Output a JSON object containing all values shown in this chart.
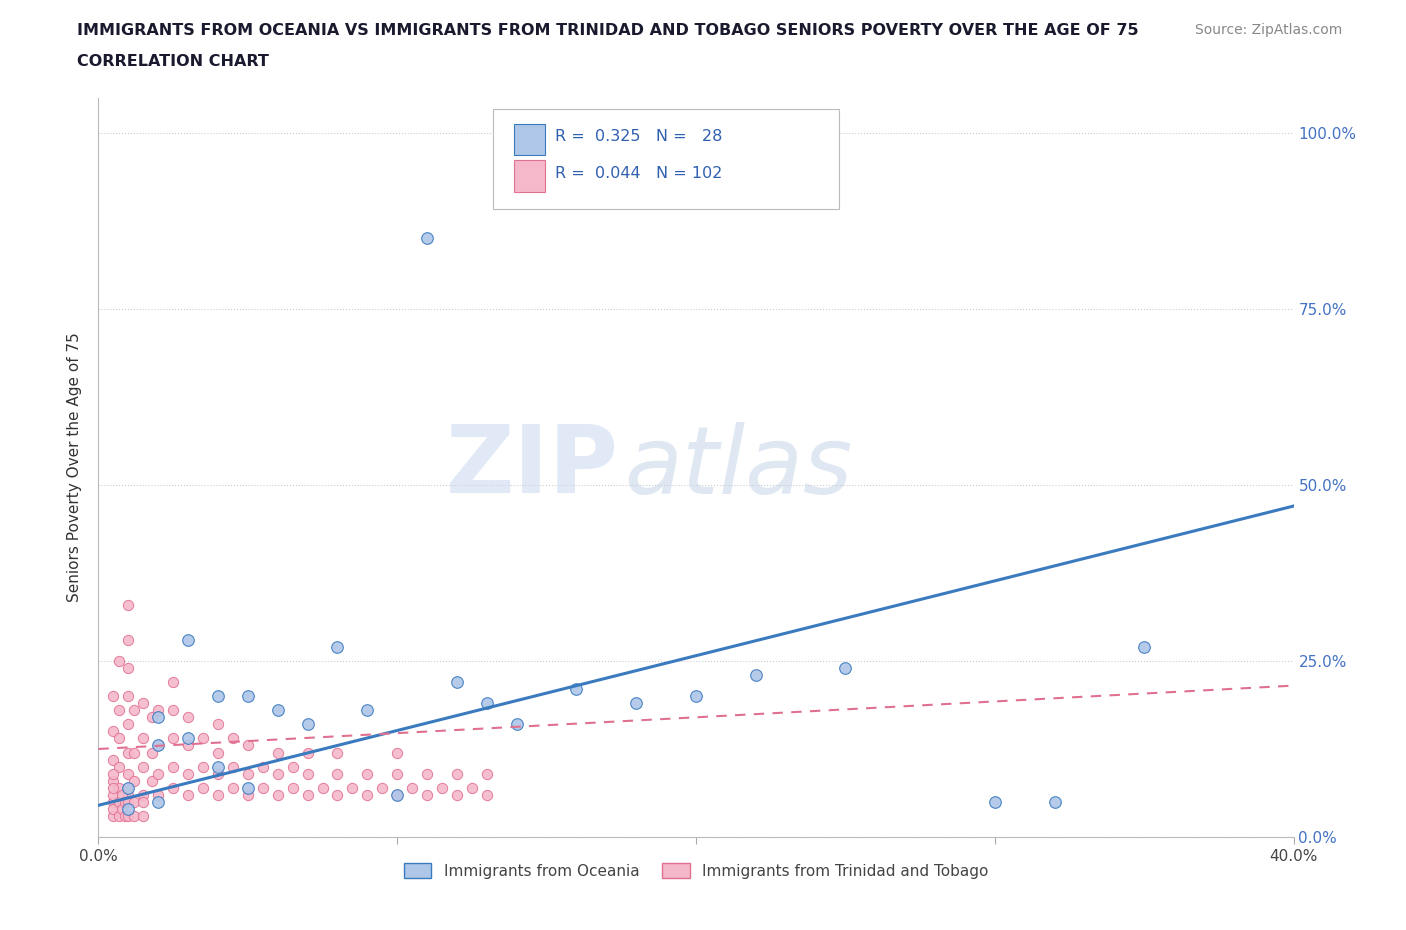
{
  "title_line1": "IMMIGRANTS FROM OCEANIA VS IMMIGRANTS FROM TRINIDAD AND TOBAGO SENIORS POVERTY OVER THE AGE OF 75",
  "title_line2": "CORRELATION CHART",
  "source_text": "Source: ZipAtlas.com",
  "ylabel": "Seniors Poverty Over the Age of 75",
  "xlim": [
    0.0,
    0.4
  ],
  "ylim": [
    0.0,
    1.05
  ],
  "yticks": [
    0.0,
    0.25,
    0.5,
    0.75,
    1.0
  ],
  "ytick_labels": [
    "0.0%",
    "25.0%",
    "50.0%",
    "75.0%",
    "100.0%"
  ],
  "xticks": [
    0.0,
    0.1,
    0.2,
    0.3,
    0.4
  ],
  "xtick_labels": [
    "0.0%",
    "",
    "",
    "",
    "40.0%"
  ],
  "series1_color": "#aec6e8",
  "series2_color": "#f5b8cb",
  "line1_color": "#3a7abf",
  "line2_color": "#e07090",
  "background_color": "#ffffff",
  "oceania_x": [
    0.01,
    0.01,
    0.02,
    0.02,
    0.02,
    0.03,
    0.03,
    0.04,
    0.04,
    0.05,
    0.05,
    0.06,
    0.07,
    0.08,
    0.09,
    0.1,
    0.11,
    0.12,
    0.13,
    0.14,
    0.16,
    0.18,
    0.2,
    0.22,
    0.25,
    0.3,
    0.32,
    0.35
  ],
  "oceania_y": [
    0.04,
    0.07,
    0.13,
    0.17,
    0.05,
    0.28,
    0.14,
    0.2,
    0.1,
    0.2,
    0.07,
    0.18,
    0.16,
    0.27,
    0.18,
    0.06,
    0.85,
    0.22,
    0.19,
    0.16,
    0.21,
    0.19,
    0.2,
    0.23,
    0.24,
    0.05,
    0.05,
    0.27
  ],
  "tt_x": [
    0.005,
    0.005,
    0.005,
    0.005,
    0.005,
    0.007,
    0.007,
    0.007,
    0.007,
    0.007,
    0.01,
    0.01,
    0.01,
    0.01,
    0.01,
    0.01,
    0.01,
    0.01,
    0.012,
    0.012,
    0.012,
    0.015,
    0.015,
    0.015,
    0.015,
    0.018,
    0.018,
    0.018,
    0.02,
    0.02,
    0.02,
    0.02,
    0.025,
    0.025,
    0.025,
    0.025,
    0.025,
    0.03,
    0.03,
    0.03,
    0.03,
    0.035,
    0.035,
    0.035,
    0.04,
    0.04,
    0.04,
    0.04,
    0.045,
    0.045,
    0.045,
    0.05,
    0.05,
    0.05,
    0.055,
    0.055,
    0.06,
    0.06,
    0.06,
    0.065,
    0.065,
    0.07,
    0.07,
    0.07,
    0.075,
    0.08,
    0.08,
    0.08,
    0.085,
    0.09,
    0.09,
    0.095,
    0.1,
    0.1,
    0.1,
    0.105,
    0.11,
    0.11,
    0.115,
    0.12,
    0.12,
    0.125,
    0.13,
    0.13,
    0.005,
    0.005,
    0.005,
    0.005,
    0.005,
    0.007,
    0.007,
    0.008,
    0.008,
    0.009,
    0.009,
    0.01,
    0.01,
    0.01,
    0.012,
    0.012,
    0.015,
    0.015
  ],
  "tt_y": [
    0.05,
    0.08,
    0.11,
    0.15,
    0.2,
    0.07,
    0.1,
    0.14,
    0.18,
    0.25,
    0.06,
    0.09,
    0.12,
    0.16,
    0.2,
    0.24,
    0.28,
    0.33,
    0.08,
    0.12,
    0.18,
    0.06,
    0.1,
    0.14,
    0.19,
    0.08,
    0.12,
    0.17,
    0.06,
    0.09,
    0.13,
    0.18,
    0.07,
    0.1,
    0.14,
    0.18,
    0.22,
    0.06,
    0.09,
    0.13,
    0.17,
    0.07,
    0.1,
    0.14,
    0.06,
    0.09,
    0.12,
    0.16,
    0.07,
    0.1,
    0.14,
    0.06,
    0.09,
    0.13,
    0.07,
    0.1,
    0.06,
    0.09,
    0.12,
    0.07,
    0.1,
    0.06,
    0.09,
    0.12,
    0.07,
    0.06,
    0.09,
    0.12,
    0.07,
    0.06,
    0.09,
    0.07,
    0.06,
    0.09,
    0.12,
    0.07,
    0.06,
    0.09,
    0.07,
    0.06,
    0.09,
    0.07,
    0.06,
    0.09,
    0.03,
    0.04,
    0.06,
    0.07,
    0.09,
    0.03,
    0.05,
    0.04,
    0.06,
    0.03,
    0.05,
    0.03,
    0.05,
    0.07,
    0.03,
    0.05,
    0.03,
    0.05
  ],
  "line1_x0": 0.0,
  "line1_y0": 0.045,
  "line1_x1": 0.4,
  "line1_y1": 0.47,
  "line2_x0": 0.0,
  "line2_y0": 0.125,
  "line2_x1": 0.4,
  "line2_y1": 0.215
}
